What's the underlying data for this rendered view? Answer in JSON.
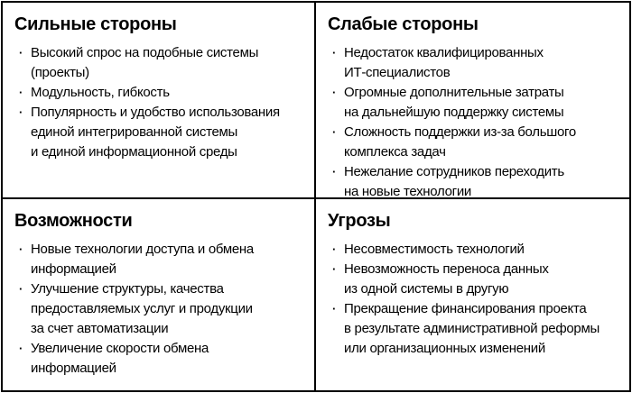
{
  "bullet_char": "·",
  "colors": {
    "border": "#000000",
    "background": "#ffffff",
    "text": "#000000"
  },
  "quadrants": [
    {
      "id": "strengths",
      "title": "Сильные стороны",
      "items": [
        "Высокий спрос на подобные системы\n(проекты)",
        "Модульность, гибкость",
        "Популярность и удобство использования\nединой интегрированной системы\nи единой информационной среды"
      ]
    },
    {
      "id": "weaknesses",
      "title": "Слабые стороны",
      "items": [
        "Недостаток квалифицированных\nИТ-специалистов",
        "Огромные дополнительные затраты\nна дальнейшую поддержку системы",
        "Сложность поддержки из-за большого\nкомплекса задач",
        "Нежелание сотрудников переходить\nна новые технологии"
      ]
    },
    {
      "id": "opportunities",
      "title": "Возможности",
      "items": [
        "Новые технологии доступа и обмена\nинформацией",
        "Улучшение структуры, качества\nпредоставляемых услуг и продукции\nза счет автоматизации",
        "Увеличение скорости обмена\nинформацией"
      ]
    },
    {
      "id": "threats",
      "title": "Угрозы",
      "items": [
        "Несовместимость технологий",
        "Невозможность переноса данных\nиз одной системы в другую",
        "Прекращение финансирования проекта\nв результате административной реформы\nили организационных изменений"
      ]
    }
  ]
}
